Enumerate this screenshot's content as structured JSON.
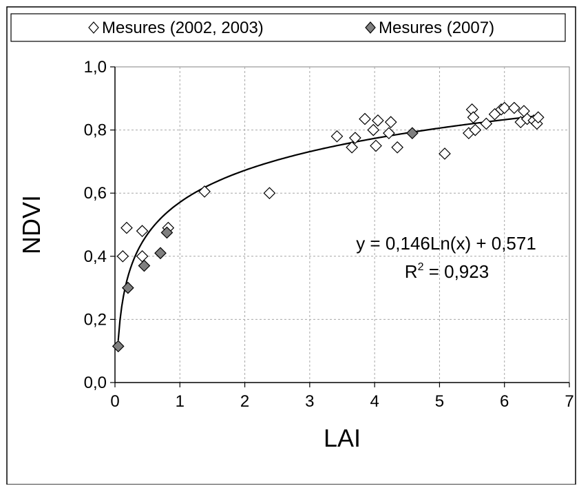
{
  "chart_data": {
    "type": "scatter",
    "xlabel": "LAI",
    "ylabel": "NDVI",
    "xlim": [
      0,
      7
    ],
    "ylim": [
      0,
      1
    ],
    "x_ticks": [
      "0",
      "1",
      "2",
      "3",
      "4",
      "5",
      "6",
      "7"
    ],
    "y_ticks": [
      "0,0",
      "0,2",
      "0,4",
      "0,6",
      "0,8",
      "1,0"
    ],
    "grid": true,
    "legend_position": "top",
    "series": [
      {
        "name": "Mesures (2002, 2003)",
        "marker": "open-diamond",
        "color": "#ffffff",
        "points": [
          [
            0.12,
            0.4
          ],
          [
            0.18,
            0.49
          ],
          [
            0.42,
            0.4
          ],
          [
            0.42,
            0.48
          ],
          [
            0.82,
            0.49
          ],
          [
            1.38,
            0.605
          ],
          [
            2.38,
            0.6
          ],
          [
            3.42,
            0.78
          ],
          [
            3.65,
            0.745
          ],
          [
            3.7,
            0.775
          ],
          [
            3.85,
            0.835
          ],
          [
            3.98,
            0.8
          ],
          [
            4.02,
            0.75
          ],
          [
            4.05,
            0.83
          ],
          [
            4.22,
            0.79
          ],
          [
            4.25,
            0.825
          ],
          [
            4.35,
            0.745
          ],
          [
            5.08,
            0.725
          ],
          [
            5.45,
            0.79
          ],
          [
            5.5,
            0.865
          ],
          [
            5.52,
            0.84
          ],
          [
            5.55,
            0.8
          ],
          [
            5.72,
            0.82
          ],
          [
            5.85,
            0.85
          ],
          [
            5.95,
            0.865
          ],
          [
            6.0,
            0.87
          ],
          [
            6.15,
            0.87
          ],
          [
            6.25,
            0.825
          ],
          [
            6.3,
            0.86
          ],
          [
            6.35,
            0.835
          ],
          [
            6.45,
            0.83
          ],
          [
            6.5,
            0.82
          ],
          [
            6.52,
            0.84
          ]
        ]
      },
      {
        "name": "Mesures (2007)",
        "marker": "filled-diamond",
        "color": "#7f7f7f",
        "points": [
          [
            0.05,
            0.115
          ],
          [
            0.2,
            0.3
          ],
          [
            0.45,
            0.37
          ],
          [
            0.7,
            0.41
          ],
          [
            0.8,
            0.475
          ],
          [
            4.58,
            0.79
          ]
        ]
      }
    ],
    "trendline": {
      "a": 0.146,
      "b": 0.571,
      "x_start": 0.05,
      "x_end": 6.5,
      "equation": "y = 0,146Ln(x) + 0,571",
      "r2_prefix": "R",
      "r2_exp": "2",
      "r2_rest": " = 0,923"
    }
  }
}
